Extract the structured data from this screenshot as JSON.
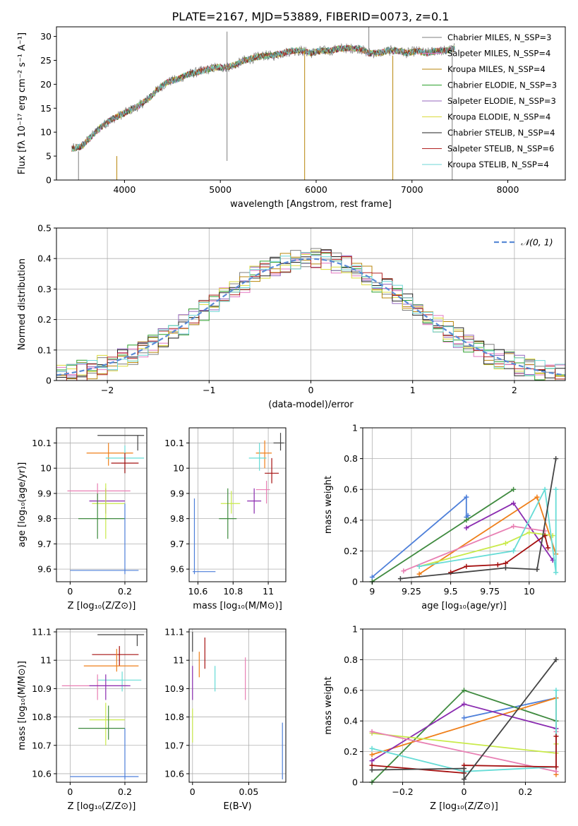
{
  "figure_title": "PLATE=2167, MJD=53889, FIBERID=0073, z=0.1",
  "colors": {
    "Chabrier MILES": "#7f7f7f",
    "Salpeter MILES": "#e377c2",
    "Kroupa MILES": "#ff7f0e",
    "Chabrier ELODIE": "#2ca02c",
    "Salpeter ELODIE": "#9467bd",
    "Kroupa ELODIE": "#dbdb3d",
    "Chabrier STELIB": "#222222",
    "Salpeter STELIB": "#b22222",
    "Kroupa STELIB": "#6cd6d6",
    "blue": "#4d7fd9",
    "blue_dashed": "#5b8bd6",
    "green": "#3f8a3f",
    "orange": "#ef7f1a",
    "purple": "#8a2bb0",
    "yellowgreen": "#c9ea4a",
    "cyan": "#66dcd6",
    "pink": "#e87fb3",
    "darkred": "#a51010",
    "darkgray": "#444444"
  },
  "chart_data": [
    {
      "id": "spectrum",
      "type": "line",
      "xlabel": "wavelength [Angstrom, rest frame]",
      "ylabel": "Flux [fλ 10⁻¹⁷ erg cm⁻² s⁻¹ A⁻¹]",
      "xlim": [
        3290,
        8600
      ],
      "ylim": [
        0,
        32
      ],
      "xticks": [
        4000,
        5000,
        6000,
        7000,
        8000
      ],
      "yticks": [
        0,
        5,
        10,
        15,
        20,
        25,
        30
      ],
      "grid": false,
      "legend_position": "top-right",
      "legend": [
        "Chabrier MILES, N_SSP=3",
        "Salpeter MILES, N_SSP=4",
        "Kroupa MILES, N_SSP=4",
        "Chabrier ELODIE, N_SSP=3",
        "Salpeter ELODIE, N_SSP=3",
        "Kroupa ELODIE, N_SSP=4",
        "Chabrier STELIB, N_SSP=4",
        "Salpeter STELIB, N_SSP=6",
        "Kroupa STELIB, N_SSP=4"
      ],
      "observed_continuum": {
        "x": [
          3450,
          3550,
          3650,
          3750,
          3850,
          3950,
          4050,
          4150,
          4250,
          4350,
          4450,
          4550,
          4650,
          4750,
          4850,
          4950,
          5050,
          5150,
          5250,
          5350,
          5450,
          5550,
          5650,
          5750,
          5850,
          5950,
          6050,
          6150,
          6250,
          6350,
          6450,
          6550,
          6650,
          6750,
          6850,
          6950,
          7050,
          7150,
          7250,
          7350,
          7450
        ],
        "y": [
          6.5,
          7,
          9,
          11,
          12.5,
          13.5,
          14.5,
          15.5,
          17,
          19,
          20.5,
          21,
          22,
          22.5,
          23,
          23.5,
          23.5,
          24,
          25,
          25.5,
          26,
          26,
          26.5,
          27,
          27,
          26.5,
          27,
          27,
          27.5,
          27.5,
          27.5,
          26.5,
          26.5,
          27,
          27,
          26.5,
          27,
          26.5,
          27,
          27,
          27.5
        ]
      },
      "vertical_spikes": [
        {
          "x": 3520,
          "y_from": 0,
          "y_to": 6
        },
        {
          "x": 3920,
          "y_from": 0,
          "y_to": 5
        },
        {
          "x": 5070,
          "y_from": 4,
          "y_to": 31
        },
        {
          "x": 5880,
          "y_from": 0,
          "y_to": 27
        },
        {
          "x": 6550,
          "y_from": 26,
          "y_to": 32
        },
        {
          "x": 6800,
          "y_from": 0,
          "y_to": 26
        },
        {
          "x": 7420,
          "y_from": 0,
          "y_to": 28
        }
      ]
    },
    {
      "id": "residual_histogram",
      "type": "area",
      "xlabel": "(data-model)/error",
      "ylabel": "Normed distribution",
      "xlim": [
        -2.5,
        2.5
      ],
      "ylim": [
        0,
        0.5
      ],
      "xticks": [
        -2,
        -1,
        0,
        1,
        2
      ],
      "yticks": [
        0.0,
        0.1,
        0.2,
        0.3,
        0.4,
        0.5
      ],
      "grid": true,
      "legend_position": "top-right",
      "legend": [
        "𝒩(0, 1)"
      ],
      "reference_curve": "normal(0,1)",
      "bin_width": 0.1
    },
    {
      "id": "age_vs_Z",
      "type": "scatter",
      "xlabel": "Z [log₁₀(Z/Z⊙)]",
      "ylabel": "age  [log₁₀(age/yr)]",
      "xlim": [
        -0.05,
        0.28
      ],
      "ylim": [
        9.55,
        10.16
      ],
      "xticks": [
        0.0,
        0.2
      ],
      "yticks": [
        9.6,
        9.7,
        9.8,
        9.9,
        10.0,
        10.1
      ],
      "grid": true,
      "crosses": [
        {
          "cx": 0.247,
          "cy": 10.13,
          "x1": 0.1,
          "x2": 0.27,
          "y1": 10.07,
          "y2": 10.13,
          "color": "darkgray"
        },
        {
          "cx": 0.14,
          "cy": 10.06,
          "x1": 0.06,
          "x2": 0.23,
          "y1": 10.01,
          "y2": 10.1,
          "color": "orange"
        },
        {
          "cx": 0.2,
          "cy": 10.04,
          "x1": 0.13,
          "x2": 0.27,
          "y1": 9.98,
          "y2": 10.09,
          "color": "cyan"
        },
        {
          "cx": 0.2,
          "cy": 10.02,
          "x1": 0.15,
          "x2": 0.25,
          "y1": 9.98,
          "y2": 10.06,
          "color": "darkred"
        },
        {
          "cx": 0.1,
          "cy": 9.91,
          "x1": -0.01,
          "x2": 0.22,
          "y1": 9.86,
          "y2": 9.94,
          "color": "pink"
        },
        {
          "cx": 0.13,
          "cy": 9.87,
          "x1": 0.07,
          "x2": 0.2,
          "y1": 9.82,
          "y2": 9.92,
          "color": "purple"
        },
        {
          "cx": 0.13,
          "cy": 9.86,
          "x1": 0.08,
          "x2": 0.2,
          "y1": 9.72,
          "y2": 9.94,
          "color": "yellowgreen"
        },
        {
          "cx": 0.1,
          "cy": 9.8,
          "x1": 0.03,
          "x2": 0.2,
          "y1": 9.72,
          "y2": 9.9,
          "color": "green"
        },
        {
          "cx": 0.2,
          "cy": 9.595,
          "x1": 0.0,
          "x2": 0.25,
          "y1": 9.58,
          "y2": 9.86,
          "color": "blue"
        }
      ]
    },
    {
      "id": "age_vs_mass",
      "type": "scatter",
      "xlabel": "mass [log₁₀(M/M⊙)]",
      "ylabel": "",
      "xlim": [
        10.55,
        11.1
      ],
      "ylim": [
        9.55,
        10.16
      ],
      "xticks": [
        10.6,
        10.8,
        11.0
      ],
      "yticks": [
        9.6,
        9.7,
        9.8,
        9.9,
        10.0,
        10.1
      ],
      "grid": true,
      "crosses": [
        {
          "cx": 11.07,
          "cy": 10.1,
          "x1": 11.03,
          "x2": 11.09,
          "y1": 10.07,
          "y2": 10.14,
          "color": "darkgray"
        },
        {
          "cx": 10.98,
          "cy": 10.06,
          "x1": 10.93,
          "x2": 11.02,
          "y1": 10.0,
          "y2": 10.11,
          "color": "orange"
        },
        {
          "cx": 10.95,
          "cy": 10.04,
          "x1": 10.89,
          "x2": 10.99,
          "y1": 9.99,
          "y2": 10.1,
          "color": "cyan"
        },
        {
          "cx": 11.02,
          "cy": 9.98,
          "x1": 10.98,
          "x2": 11.06,
          "y1": 9.94,
          "y2": 10.04,
          "color": "darkred"
        },
        {
          "cx": 10.99,
          "cy": 9.915,
          "x1": 10.93,
          "x2": 11.01,
          "y1": 9.86,
          "y2": 9.95,
          "color": "pink"
        },
        {
          "cx": 10.92,
          "cy": 9.87,
          "x1": 10.88,
          "x2": 10.96,
          "y1": 9.82,
          "y2": 9.92,
          "color": "purple"
        },
        {
          "cx": 10.79,
          "cy": 9.86,
          "x1": 10.73,
          "x2": 10.84,
          "y1": 9.82,
          "y2": 9.91,
          "color": "yellowgreen"
        },
        {
          "cx": 10.77,
          "cy": 9.8,
          "x1": 10.72,
          "x2": 10.82,
          "y1": 9.72,
          "y2": 9.92,
          "color": "green"
        },
        {
          "cx": 10.58,
          "cy": 9.59,
          "x1": 10.57,
          "x2": 10.7,
          "y1": 9.58,
          "y2": 9.88,
          "color": "blue"
        }
      ]
    },
    {
      "id": "mass_weight_vs_age",
      "type": "line",
      "xlabel": "age  [log₁₀(age/yr)]",
      "ylabel": "mass weight",
      "xlim": [
        8.94,
        10.23
      ],
      "ylim": [
        0.0,
        1.0
      ],
      "xticks": [
        9.0,
        9.25,
        9.5,
        9.75,
        10.0
      ],
      "yticks": [
        0.0,
        0.2,
        0.4,
        0.6,
        0.8,
        1.0
      ],
      "grid": true,
      "series": [
        {
          "color": "blue",
          "x": [
            9.0,
            9.6,
            9.6,
            9.61
          ],
          "y": [
            0.03,
            0.55,
            0.42,
            0.43
          ]
        },
        {
          "color": "green",
          "x": [
            9.0,
            9.9,
            9.6
          ],
          "y": [
            0.0,
            0.6,
            0.4
          ]
        },
        {
          "color": "orange",
          "x": [
            9.3,
            10.05,
            10.17
          ],
          "y": [
            0.05,
            0.55,
            0.18
          ]
        },
        {
          "color": "purple",
          "x": [
            9.6,
            9.9,
            10.15
          ],
          "y": [
            0.35,
            0.51,
            0.14
          ]
        },
        {
          "color": "yellowgreen",
          "x": [
            9.3,
            9.85,
            10.0,
            10.15
          ],
          "y": [
            0.1,
            0.25,
            0.32,
            0.3
          ]
        },
        {
          "color": "pink",
          "x": [
            9.2,
            9.9,
            10.1
          ],
          "y": [
            0.07,
            0.36,
            0.33
          ]
        },
        {
          "color": "cyan",
          "x": [
            9.3,
            9.9,
            10.1,
            10.17,
            10.17
          ],
          "y": [
            0.1,
            0.2,
            0.6,
            0.06,
            0.6
          ]
        },
        {
          "color": "darkred",
          "x": [
            9.5,
            9.6,
            9.8,
            9.85,
            10.1,
            10.12
          ],
          "y": [
            0.06,
            0.1,
            0.11,
            0.12,
            0.3,
            0.22
          ]
        },
        {
          "color": "darkgray",
          "x": [
            9.18,
            9.85,
            10.05,
            10.17
          ],
          "y": [
            0.02,
            0.09,
            0.08,
            0.8
          ]
        }
      ]
    },
    {
      "id": "mass_vs_Z",
      "type": "scatter",
      "xlabel": "Z [log₁₀(Z/Z⊙)]",
      "ylabel": "mass [log₁₀(M/M⊙)]",
      "xlim": [
        -0.05,
        0.28
      ],
      "ylim": [
        10.57,
        11.11
      ],
      "xticks": [
        0.0,
        0.2
      ],
      "yticks": [
        10.6,
        10.7,
        10.8,
        10.9,
        11.0,
        11.1
      ],
      "grid": true,
      "crosses": [
        {
          "cx": 0.245,
          "cy": 11.09,
          "x1": 0.1,
          "x2": 0.27,
          "y1": 11.05,
          "y2": 11.09,
          "color": "darkgray"
        },
        {
          "cx": 0.18,
          "cy": 11.02,
          "x1": 0.08,
          "x2": 0.25,
          "y1": 10.98,
          "y2": 11.05,
          "color": "darkred"
        },
        {
          "cx": 0.17,
          "cy": 10.98,
          "x1": 0.05,
          "x2": 0.25,
          "y1": 10.96,
          "y2": 11.04,
          "color": "orange"
        },
        {
          "cx": 0.19,
          "cy": 10.93,
          "x1": 0.1,
          "x2": 0.26,
          "y1": 10.89,
          "y2": 10.96,
          "color": "cyan"
        },
        {
          "cx": 0.1,
          "cy": 10.91,
          "x1": -0.03,
          "x2": 0.21,
          "y1": 10.86,
          "y2": 10.95,
          "color": "pink"
        },
        {
          "cx": 0.13,
          "cy": 10.91,
          "x1": 0.07,
          "x2": 0.22,
          "y1": 10.86,
          "y2": 10.95,
          "color": "purple"
        },
        {
          "cx": 0.13,
          "cy": 10.79,
          "x1": 0.07,
          "x2": 0.2,
          "y1": 10.7,
          "y2": 10.85,
          "color": "yellowgreen"
        },
        {
          "cx": 0.14,
          "cy": 10.76,
          "x1": 0.03,
          "x2": 0.2,
          "y1": 10.72,
          "y2": 10.84,
          "color": "green"
        },
        {
          "cx": 0.2,
          "cy": 10.59,
          "x1": 0.0,
          "x2": 0.25,
          "y1": 10.58,
          "y2": 10.76,
          "color": "blue"
        }
      ]
    },
    {
      "id": "mass_vs_EBV",
      "type": "scatter",
      "xlabel": "E(B-V)",
      "ylabel": "",
      "xlim": [
        -0.003,
        0.083
      ],
      "ylim": [
        10.57,
        11.11
      ],
      "xticks": [
        0.0,
        0.05
      ],
      "yticks": [
        10.6,
        10.7,
        10.8,
        10.9,
        11.0,
        11.1
      ],
      "grid": true,
      "bars": [
        {
          "x": 0.0,
          "y1": 11.03,
          "y2": 11.1,
          "color": "darkgray"
        },
        {
          "x": 0.0,
          "y1": 10.86,
          "y2": 10.98,
          "color": "purple"
        },
        {
          "x": 0.0,
          "y1": 10.71,
          "y2": 10.83,
          "color": "yellowgreen"
        },
        {
          "x": 0.006,
          "y1": 10.94,
          "y2": 11.03,
          "color": "orange"
        },
        {
          "x": 0.011,
          "y1": 10.97,
          "y2": 11.08,
          "color": "darkred"
        },
        {
          "x": 0.02,
          "y1": 10.89,
          "y2": 10.98,
          "color": "cyan"
        },
        {
          "x": 0.047,
          "y1": 10.86,
          "y2": 11.01,
          "color": "pink"
        },
        {
          "x": 0.08,
          "y1": 10.58,
          "y2": 10.78,
          "color": "blue"
        }
      ]
    },
    {
      "id": "mass_weight_vs_Z",
      "type": "line",
      "xlabel": "Z [log₁₀(Z/Z⊙)]",
      "ylabel": "mass weight",
      "xlim": [
        -0.33,
        0.33
      ],
      "ylim": [
        0.0,
        1.0
      ],
      "xticks": [
        -0.2,
        0.0,
        0.2
      ],
      "yticks": [
        0.0,
        0.2,
        0.4,
        0.6,
        0.8,
        1.0
      ],
      "grid": true,
      "series": [
        {
          "color": "blue",
          "x": [
            0.0,
            0.3
          ],
          "y": [
            0.42,
            0.55
          ]
        },
        {
          "color": "green",
          "x": [
            -0.3,
            0.0,
            0.3
          ],
          "y": [
            0.0,
            0.6,
            0.4
          ]
        },
        {
          "color": "orange",
          "x": [
            -0.3,
            0.3,
            0.3
          ],
          "y": [
            0.18,
            0.55,
            0.05
          ]
        },
        {
          "color": "purple",
          "x": [
            -0.3,
            0.0,
            0.3
          ],
          "y": [
            0.14,
            0.51,
            0.35
          ]
        },
        {
          "color": "yellowgreen",
          "x": [
            -0.3,
            0.3,
            0.3
          ],
          "y": [
            0.32,
            0.19,
            0.25
          ]
        },
        {
          "color": "pink",
          "x": [
            -0.3,
            0.3,
            0.3
          ],
          "y": [
            0.33,
            0.07,
            0.33
          ]
        },
        {
          "color": "cyan",
          "x": [
            -0.3,
            0.0,
            0.3,
            0.3
          ],
          "y": [
            0.22,
            0.07,
            0.1,
            0.6
          ]
        },
        {
          "color": "darkred",
          "x": [
            -0.3,
            0.0,
            0.0,
            0.3,
            0.3
          ],
          "y": [
            0.11,
            0.06,
            0.11,
            0.1,
            0.3
          ]
        },
        {
          "color": "darkgray",
          "x": [
            -0.3,
            0.0,
            0.0,
            0.3
          ],
          "y": [
            0.08,
            0.09,
            0.02,
            0.8
          ]
        }
      ]
    }
  ]
}
